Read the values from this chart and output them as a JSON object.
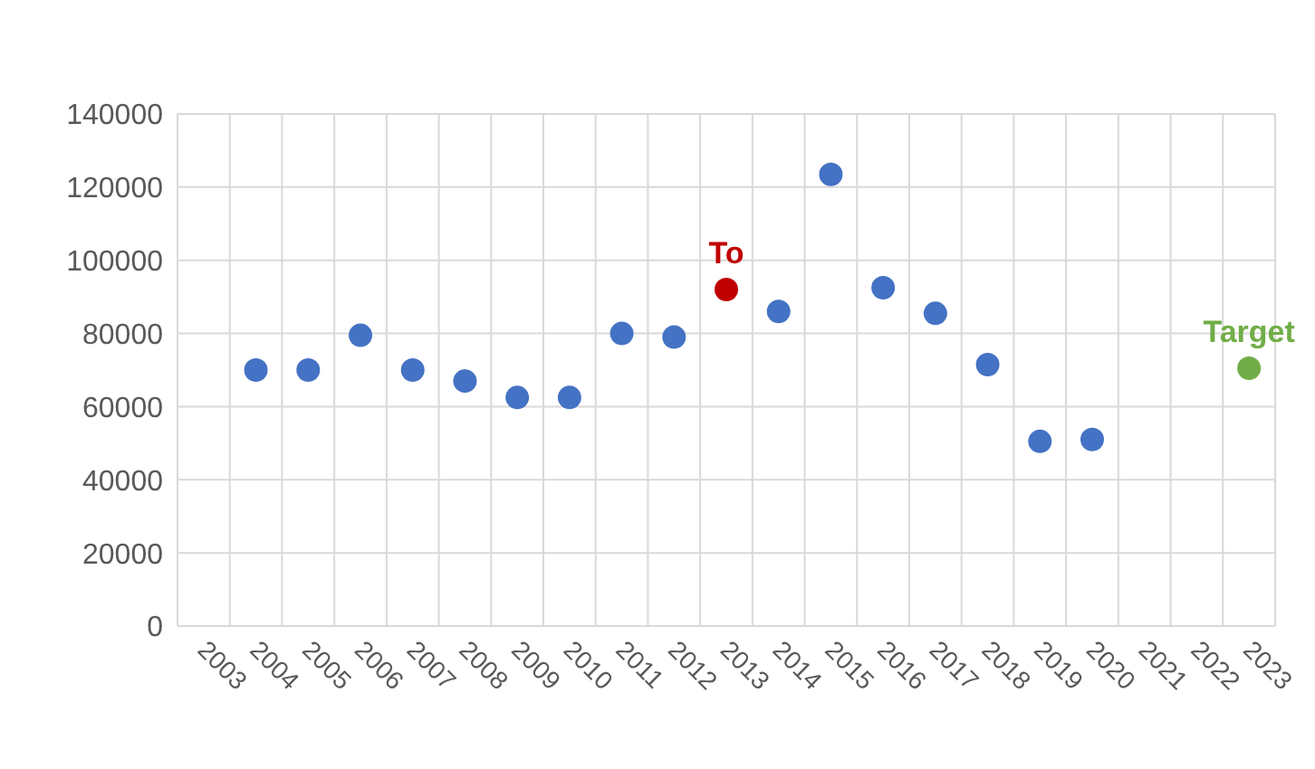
{
  "chart_data": {
    "type": "scatter",
    "categories": [
      "2003",
      "2004",
      "2005",
      "2006",
      "2007",
      "2008",
      "2009",
      "2010",
      "2011",
      "2012",
      "2013",
      "2014",
      "2015",
      "2016",
      "2017",
      "2018",
      "2019",
      "2020",
      "2021",
      "2022",
      "2023"
    ],
    "series": [
      {
        "color": "#4472c4",
        "values": [
          null,
          70000,
          70000,
          79500,
          70000,
          67000,
          62500,
          62500,
          80000,
          79000,
          null,
          86000,
          123500,
          92500,
          85500,
          71500,
          50500,
          51000,
          null,
          null,
          null
        ]
      },
      {
        "name": "To",
        "color": "#c00000",
        "values": [
          null,
          null,
          null,
          null,
          null,
          null,
          null,
          null,
          null,
          null,
          92000,
          null,
          null,
          null,
          null,
          null,
          null,
          null,
          null,
          null,
          null
        ]
      },
      {
        "name": "Target",
        "color": "#70ad47",
        "values": [
          null,
          null,
          null,
          null,
          null,
          null,
          null,
          null,
          null,
          null,
          null,
          null,
          null,
          null,
          null,
          null,
          null,
          null,
          null,
          null,
          70500
        ]
      }
    ],
    "ylim": [
      0,
      140000
    ],
    "yticks": [
      0,
      20000,
      40000,
      60000,
      80000,
      100000,
      120000,
      140000
    ],
    "grid": true,
    "marker": "circle"
  }
}
